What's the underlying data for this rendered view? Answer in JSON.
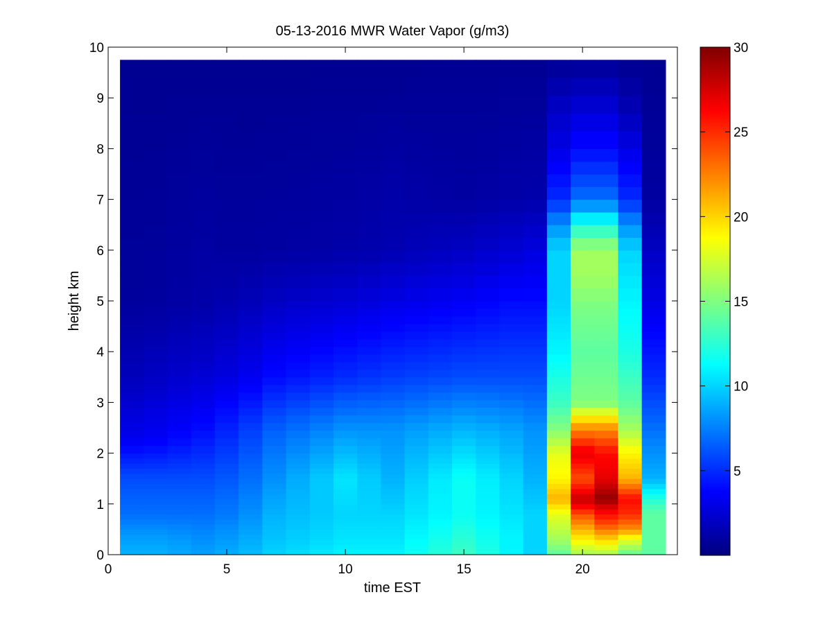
{
  "chart_data": {
    "type": "heatmap",
    "title": "05-13-2016 MWR Water Vapor (g/m3)",
    "xlabel": "time EST",
    "ylabel": "height km",
    "xlim": [
      0,
      24
    ],
    "ylim": [
      0,
      10
    ],
    "x_ticks": [
      0,
      5,
      10,
      15,
      20
    ],
    "y_ticks": [
      0,
      1,
      2,
      3,
      4,
      5,
      6,
      7,
      8,
      9,
      10
    ],
    "colorbar": {
      "range": [
        0,
        30
      ],
      "ticks": [
        5,
        10,
        15,
        20,
        25,
        30
      ],
      "colormap": "jet"
    },
    "grid": false,
    "x_edges": [
      0.5,
      1.5,
      2.5,
      3.5,
      4.5,
      5.5,
      6.5,
      7.5,
      8.5,
      9.5,
      10.5,
      11.5,
      12.5,
      13.5,
      14.5,
      15.5,
      16.5,
      17.5,
      18.5,
      19.5,
      20.5,
      21.5,
      22.5,
      23.5
    ],
    "data_top_km": 9.75,
    "time_profiles": [
      {
        "t": 0,
        "p": [
          [
            0,
            9
          ],
          [
            0.3,
            8.5
          ],
          [
            0.8,
            7
          ],
          [
            1.5,
            6
          ],
          [
            2.3,
            3
          ],
          [
            3.5,
            1.5
          ],
          [
            5,
            0.8
          ],
          [
            9.75,
            0.5
          ]
        ]
      },
      {
        "t": 2,
        "p": [
          [
            0,
            9
          ],
          [
            0.3,
            8.5
          ],
          [
            0.8,
            7
          ],
          [
            1.5,
            6
          ],
          [
            2.3,
            3.5
          ],
          [
            3.5,
            2
          ],
          [
            5,
            0.9
          ],
          [
            9.75,
            0.5
          ]
        ]
      },
      {
        "t": 4,
        "p": [
          [
            0,
            8.5
          ],
          [
            0.3,
            8
          ],
          [
            0.8,
            7
          ],
          [
            1.5,
            6
          ],
          [
            2.5,
            4
          ],
          [
            3.5,
            2.5
          ],
          [
            5,
            1.2
          ],
          [
            9.75,
            0.5
          ]
        ]
      },
      {
        "t": 5.5,
        "p": [
          [
            0,
            9
          ],
          [
            0.3,
            8.5
          ],
          [
            0.8,
            7.5
          ],
          [
            1.5,
            6.5
          ],
          [
            2.5,
            5
          ],
          [
            3.5,
            3
          ],
          [
            5,
            1.5
          ],
          [
            6,
            0.9
          ],
          [
            9.75,
            0.5
          ]
        ]
      },
      {
        "t": 7,
        "p": [
          [
            0,
            10
          ],
          [
            0.3,
            9.5
          ],
          [
            0.8,
            9
          ],
          [
            1.5,
            8
          ],
          [
            2.5,
            6.5
          ],
          [
            3.5,
            4
          ],
          [
            5,
            2
          ],
          [
            6,
            1
          ],
          [
            9.75,
            0.5
          ]
        ]
      },
      {
        "t": 10,
        "p": [
          [
            0,
            11
          ],
          [
            0.3,
            10.5
          ],
          [
            0.8,
            10
          ],
          [
            1.5,
            10.5
          ],
          [
            2.5,
            8
          ],
          [
            3.5,
            5
          ],
          [
            5,
            2.5
          ],
          [
            6,
            1.2
          ],
          [
            9.75,
            0.5
          ]
        ]
      },
      {
        "t": 12,
        "p": [
          [
            0,
            11
          ],
          [
            0.3,
            10.5
          ],
          [
            0.8,
            10
          ],
          [
            1.5,
            9
          ],
          [
            2.5,
            8
          ],
          [
            3.5,
            5.5
          ],
          [
            5,
            3
          ],
          [
            6,
            1.5
          ],
          [
            9.75,
            0.5
          ]
        ]
      },
      {
        "t": 15,
        "p": [
          [
            0,
            13
          ],
          [
            0.3,
            12.5
          ],
          [
            0.8,
            11.5
          ],
          [
            1.5,
            11.5
          ],
          [
            2.5,
            9
          ],
          [
            3.5,
            6
          ],
          [
            5,
            3.5
          ],
          [
            6,
            2
          ],
          [
            7,
            1
          ],
          [
            9.75,
            0.6
          ]
        ]
      },
      {
        "t": 17,
        "p": [
          [
            0,
            11
          ],
          [
            0.3,
            11
          ],
          [
            0.8,
            10.5
          ],
          [
            1.5,
            10
          ],
          [
            2.5,
            8.5
          ],
          [
            3.5,
            6
          ],
          [
            5,
            4
          ],
          [
            6,
            2.5
          ],
          [
            7,
            1.2
          ],
          [
            9.75,
            0.6
          ]
        ]
      },
      {
        "t": 18,
        "p": [
          [
            0,
            10
          ],
          [
            0.3,
            10
          ],
          [
            0.8,
            10
          ],
          [
            1.5,
            9
          ],
          [
            2.5,
            8
          ],
          [
            3.5,
            6
          ],
          [
            5,
            4
          ],
          [
            6,
            2.8
          ],
          [
            7,
            1.3
          ],
          [
            9.75,
            0.6
          ]
        ]
      },
      {
        "t": 19,
        "p": [
          [
            0,
            14
          ],
          [
            0.3,
            16
          ],
          [
            0.8,
            18
          ],
          [
            1.1,
            21
          ],
          [
            1.5,
            19
          ],
          [
            2,
            18
          ],
          [
            2.5,
            15
          ],
          [
            3,
            13
          ],
          [
            4,
            11
          ],
          [
            5,
            10
          ],
          [
            6,
            10
          ],
          [
            6.5,
            8
          ],
          [
            7,
            5
          ],
          [
            8,
            3
          ],
          [
            8.8,
            2
          ],
          [
            9.75,
            0.6
          ]
        ]
      },
      {
        "t": 20,
        "p": [
          [
            0,
            16
          ],
          [
            0.3,
            19
          ],
          [
            0.5,
            21
          ],
          [
            0.8,
            24
          ],
          [
            1,
            27
          ],
          [
            1.1,
            28
          ],
          [
            1.5,
            24
          ],
          [
            2,
            27
          ],
          [
            2.5,
            22
          ],
          [
            2.8,
            18
          ],
          [
            3,
            15
          ],
          [
            4,
            14
          ],
          [
            5,
            15
          ],
          [
            5.5,
            16
          ],
          [
            6,
            16
          ],
          [
            6.5,
            12
          ],
          [
            7,
            7
          ],
          [
            8,
            4
          ],
          [
            8.8,
            2.5
          ],
          [
            9.75,
            0.6
          ]
        ]
      },
      {
        "t": 21,
        "p": [
          [
            0,
            16
          ],
          [
            0.3,
            20
          ],
          [
            0.6,
            24
          ],
          [
            0.8,
            26
          ],
          [
            1,
            28
          ],
          [
            1.1,
            29.5
          ],
          [
            1.5,
            27
          ],
          [
            2,
            26
          ],
          [
            2.5,
            22
          ],
          [
            2.8,
            18
          ],
          [
            3,
            15
          ],
          [
            4,
            14
          ],
          [
            5,
            15
          ],
          [
            5.5,
            16
          ],
          [
            6,
            16
          ],
          [
            6.5,
            12
          ],
          [
            7,
            7
          ],
          [
            8,
            4
          ],
          [
            8.8,
            2.5
          ],
          [
            9.75,
            0.6
          ]
        ]
      },
      {
        "t": 22,
        "p": [
          [
            0,
            14
          ],
          [
            0.3,
            18
          ],
          [
            0.5,
            22
          ],
          [
            0.8,
            25
          ],
          [
            1.1,
            26
          ],
          [
            1.5,
            21
          ],
          [
            2,
            19
          ],
          [
            2.5,
            16
          ],
          [
            3,
            14
          ],
          [
            4,
            12
          ],
          [
            5,
            11
          ],
          [
            6,
            10
          ],
          [
            6.5,
            8
          ],
          [
            7,
            5
          ],
          [
            8,
            3
          ],
          [
            8.8,
            1.5
          ],
          [
            9.75,
            0.5
          ]
        ]
      },
      {
        "t": 23,
        "p": [
          [
            0,
            14
          ],
          [
            0.3,
            14
          ],
          [
            0.8,
            14
          ],
          [
            1.0,
            13
          ],
          [
            1.5,
            9
          ],
          [
            2.5,
            7
          ],
          [
            3.5,
            5
          ],
          [
            5,
            3
          ],
          [
            6,
            2
          ],
          [
            7,
            1
          ],
          [
            9.75,
            0.5
          ]
        ]
      }
    ]
  }
}
